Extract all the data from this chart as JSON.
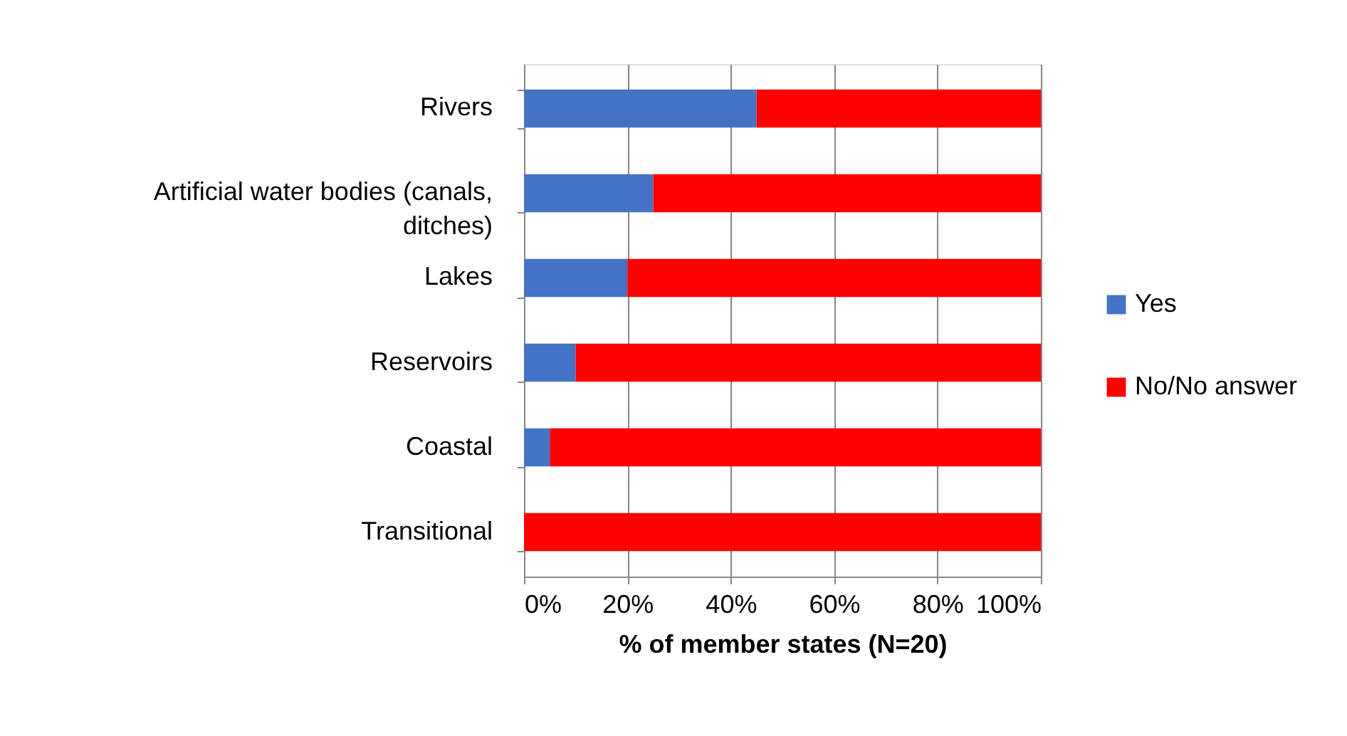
{
  "chart_data": {
    "type": "bar",
    "orientation": "horizontal",
    "stacked": true,
    "categories": [
      "Rivers",
      "Artificial water bodies (canals, ditches)",
      "Lakes",
      "Reservoirs",
      "Coastal",
      "Transitional"
    ],
    "series": [
      {
        "name": "Yes",
        "color": "#4472c4",
        "values": [
          45,
          25,
          20,
          10,
          5,
          0
        ]
      },
      {
        "name": "No/No answer",
        "color": "#ff0000",
        "values": [
          55,
          75,
          80,
          90,
          95,
          100
        ]
      }
    ],
    "xlim": [
      0,
      100
    ],
    "xticks": [
      {
        "value": 0,
        "label": "0%"
      },
      {
        "value": 20,
        "label": "20%"
      },
      {
        "value": 40,
        "label": "40%"
      },
      {
        "value": 60,
        "label": "60%"
      },
      {
        "value": 80,
        "label": "80%"
      },
      {
        "value": 100,
        "label": "100%"
      }
    ],
    "xlabel": "% of member states (N=20)",
    "grid": "x",
    "legend": "right"
  }
}
